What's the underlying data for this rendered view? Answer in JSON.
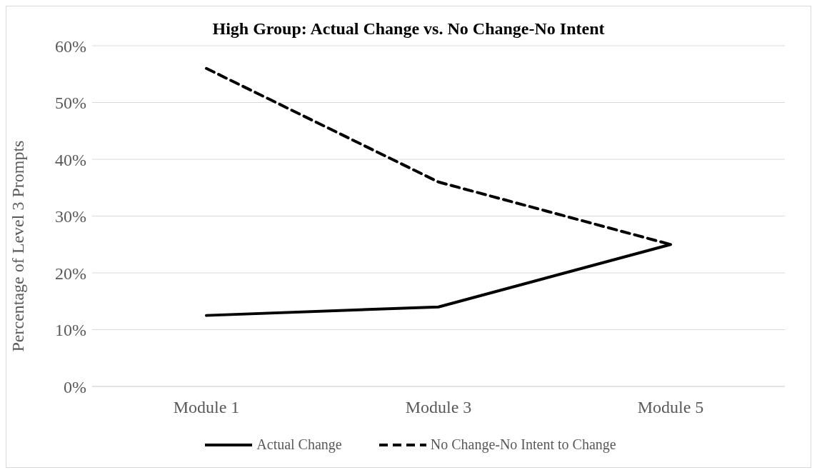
{
  "chart_data": {
    "type": "line",
    "title": "High Group: Actual Change vs. No Change-No Intent",
    "ylabel": "Percentage of Level 3 Prompts",
    "categories": [
      "Module 1",
      "Module 3",
      "Module 5"
    ],
    "series": [
      {
        "name": "Actual Change",
        "color": "#000000",
        "values": [
          12.5,
          14,
          25
        ],
        "line_style": "solid"
      },
      {
        "name": "No Change-No Intent to Change",
        "color": "#000000",
        "values": [
          56,
          36,
          25
        ],
        "line_style": "dashed"
      }
    ],
    "ylim": [
      0,
      60
    ],
    "yticks": [
      {
        "value": 0,
        "label": "0%"
      },
      {
        "value": 10,
        "label": "10%"
      },
      {
        "value": 20,
        "label": "20%"
      },
      {
        "value": 30,
        "label": "30%"
      },
      {
        "value": 40,
        "label": "40%"
      },
      {
        "value": 50,
        "label": "50%"
      },
      {
        "value": 60,
        "label": "60%"
      }
    ],
    "grid": "y",
    "legend": "bottom",
    "marker": "none"
  }
}
